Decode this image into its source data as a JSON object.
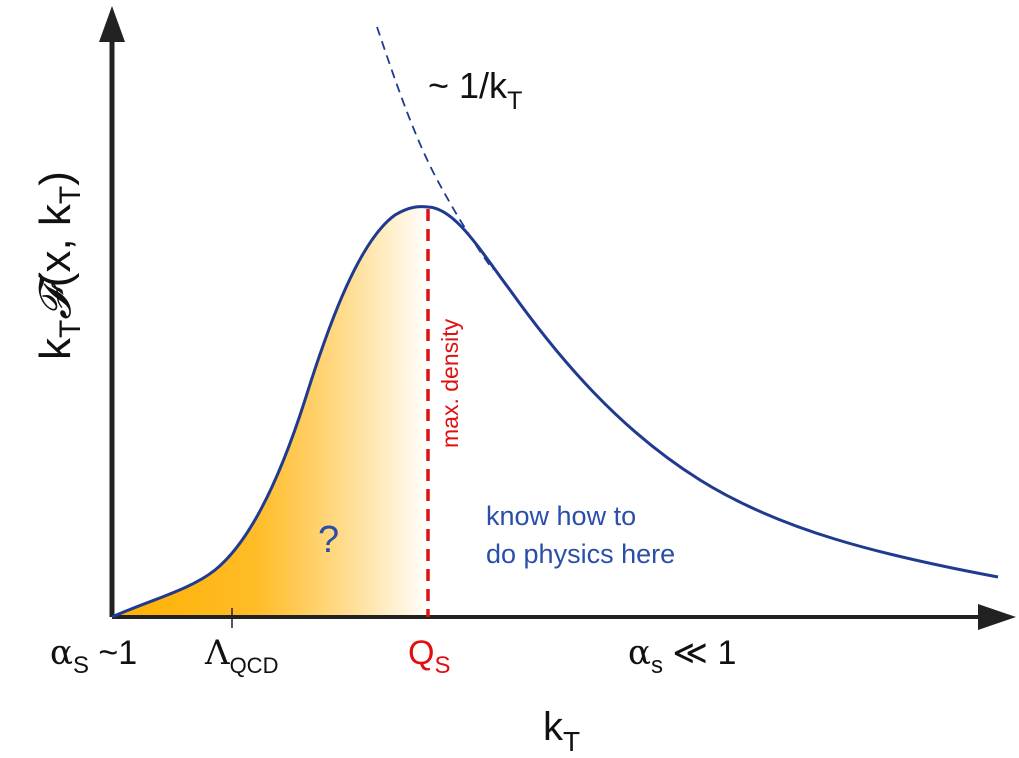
{
  "colors": {
    "axis": "#222222",
    "curve": "#1f3a8f",
    "marker": "#e01010",
    "fill_start": "#ffb000",
    "fill_end": "#ffffff",
    "annotation_blue": "#2a4fa8",
    "text": "#111111"
  },
  "y_axis_label": {
    "k": "k",
    "k_sub": "T",
    "script_f": "𝓕",
    "args_open": "(x, k",
    "args_sub": "T",
    "args_close": ")"
  },
  "x_axis_label": {
    "k": "k",
    "k_sub": "T"
  },
  "asymptote_label": {
    "prefix": "~ 1/k",
    "sub": "T"
  },
  "peak_marker_label": "max. density",
  "unknown_region_mark": "?",
  "known_region_text": [
    "know how to",
    "do physics here"
  ],
  "ticks": {
    "alpha_left": {
      "greek": "α",
      "sub": "S",
      "rest": " ~1"
    },
    "lambda": {
      "greek": "Λ",
      "sub": "QCD"
    },
    "qs": {
      "main": "Q",
      "sub": "S"
    },
    "alpha_right": {
      "greek": "α",
      "sub": "s",
      "rest": " ≪ 1"
    }
  }
}
